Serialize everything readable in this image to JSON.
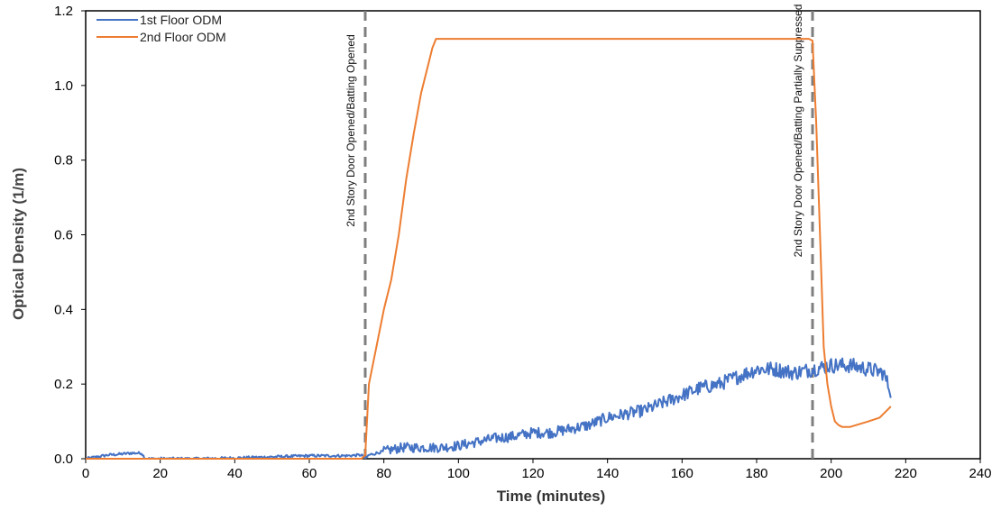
{
  "chart_data": {
    "type": "line",
    "title": "",
    "xlabel": "Time (minutes)",
    "ylabel": "Optical Density (1/m)",
    "xlim": [
      0,
      240
    ],
    "ylim": [
      0,
      1.2
    ],
    "x_ticks": [
      "0",
      "20",
      "40",
      "60",
      "80",
      "100",
      "120",
      "140",
      "160",
      "180",
      "200",
      "220",
      "240"
    ],
    "y_ticks": [
      "0.0",
      "0.2",
      "0.4",
      "0.6",
      "0.8",
      "1.0",
      "1.2"
    ],
    "grid": false,
    "legend_position": "top-left",
    "series": [
      {
        "name": "1st Floor ODM",
        "color": "#4472C4",
        "x": [
          0,
          3,
          6,
          9,
          12,
          15,
          16,
          20,
          30,
          40,
          50,
          60,
          70,
          74,
          75,
          76,
          80,
          85,
          90,
          95,
          100,
          105,
          110,
          115,
          120,
          125,
          130,
          135,
          140,
          145,
          150,
          155,
          160,
          165,
          170,
          175,
          180,
          185,
          190,
          195,
          200,
          205,
          210,
          214,
          216
        ],
        "y": [
          0.0,
          0.005,
          0.01,
          0.012,
          0.015,
          0.015,
          0.0,
          0.0,
          0.0,
          0.002,
          0.005,
          0.008,
          0.008,
          0.01,
          0.0,
          0.01,
          0.02,
          0.03,
          0.03,
          0.03,
          0.035,
          0.045,
          0.055,
          0.06,
          0.07,
          0.07,
          0.08,
          0.09,
          0.11,
          0.12,
          0.13,
          0.15,
          0.17,
          0.19,
          0.2,
          0.22,
          0.24,
          0.24,
          0.23,
          0.24,
          0.25,
          0.25,
          0.24,
          0.23,
          0.18
        ],
        "noise": 0.012
      },
      {
        "name": "2nd Floor ODM",
        "color": "#ED7D31",
        "x": [
          0,
          20,
          40,
          60,
          74,
          75,
          76,
          78,
          80,
          82,
          84,
          86,
          88,
          90,
          92,
          93,
          94,
          100,
          120,
          140,
          160,
          180,
          194,
          195,
          196,
          197,
          198,
          199,
          200,
          201,
          202,
          203,
          205,
          210,
          213,
          215,
          216
        ],
        "y": [
          0.0,
          0.0,
          0.0,
          0.0,
          0.0,
          0.01,
          0.2,
          0.3,
          0.4,
          0.48,
          0.6,
          0.75,
          0.87,
          0.98,
          1.06,
          1.1,
          1.125,
          1.125,
          1.125,
          1.125,
          1.125,
          1.125,
          1.125,
          1.12,
          0.9,
          0.6,
          0.3,
          0.2,
          0.14,
          0.1,
          0.09,
          0.085,
          0.085,
          0.1,
          0.11,
          0.13,
          0.14
        ],
        "noise": 0.0
      }
    ],
    "annotations": [
      {
        "x": 75,
        "text": "2nd Story Door Opened/Batting Opened",
        "style": "dashed-vertical",
        "color": "#7F7F7F"
      },
      {
        "x": 195,
        "text": "2nd Story Door Opened/Batting Partially Suppressed",
        "style": "dashed-vertical",
        "color": "#7F7F7F"
      }
    ]
  }
}
